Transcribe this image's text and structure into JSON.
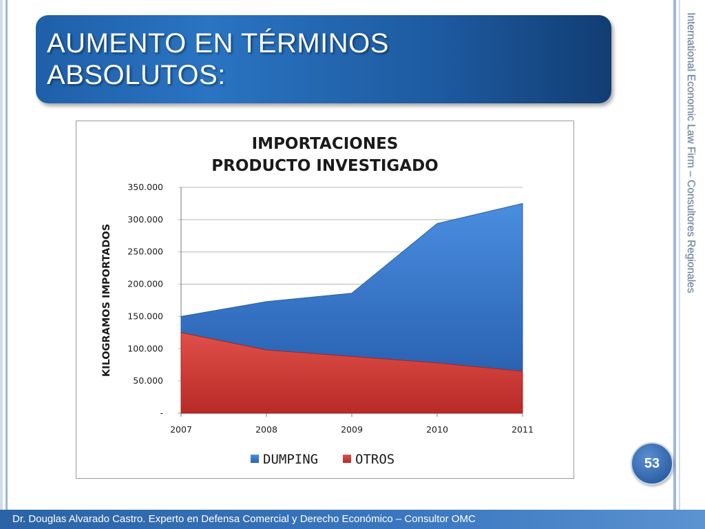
{
  "slide": {
    "title_line1": "AUMENTO EN TÉRMINOS",
    "title_line2": "ABSOLUTOS:",
    "side_text": "International Economic Law Firm – Consultores Regionales",
    "page_number": "53",
    "footer": "Dr. Douglas Alvarado Castro. Experto en Defensa Comercial y Derecho Económico – Consultor OMC"
  },
  "colors": {
    "dumping": "#3a78cc",
    "otros": "#d43a34"
  },
  "chart_data": {
    "type": "area",
    "title": [
      "IMPORTACIONES",
      "PRODUCTO INVESTIGADO"
    ],
    "ylabel": "KILOGRAMOS IMPORTADOS",
    "xlabel": "",
    "categories": [
      "2007",
      "2008",
      "2009",
      "2010",
      "2011"
    ],
    "stacked": true,
    "series": [
      {
        "name": "OTROS",
        "values": [
          125000,
          98000,
          88000,
          78000,
          65000
        ]
      },
      {
        "name": "DUMPING",
        "values": [
          25000,
          75000,
          98000,
          216000,
          260000
        ]
      }
    ],
    "ylim": [
      0,
      350000
    ],
    "yticks": [
      0,
      50000,
      100000,
      150000,
      200000,
      250000,
      300000,
      350000
    ],
    "ytick_labels": [
      "-",
      "50.000",
      "100.000",
      "150.000",
      "200.000",
      "250.000",
      "300.000",
      "350.000"
    ],
    "grid": true,
    "legend": [
      "DUMPING",
      "OTROS"
    ],
    "legend_position": "bottom"
  }
}
